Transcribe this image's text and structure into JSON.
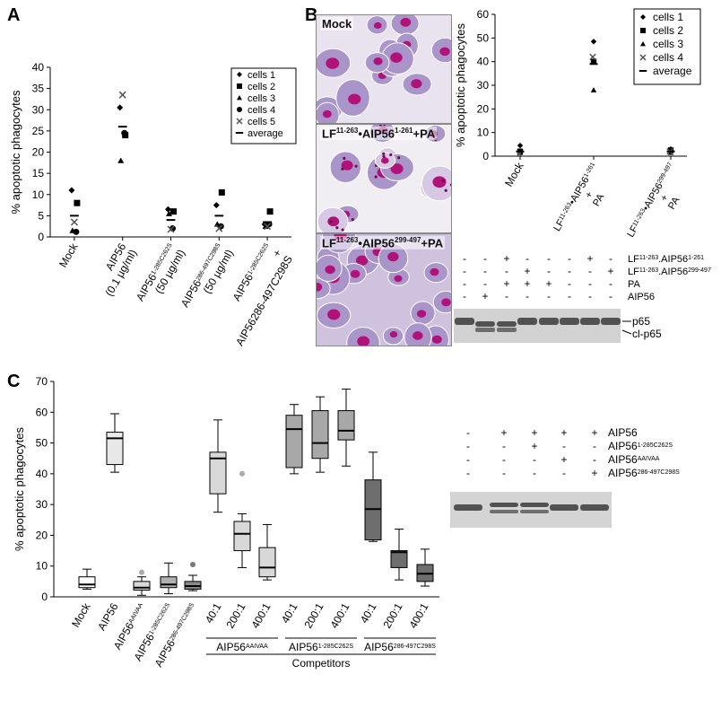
{
  "panels": {
    "a": "A",
    "b": "B",
    "c": "C"
  },
  "chart_data": [
    {
      "type": "scatter",
      "panel": "A",
      "ylabel": "% apoptotic phagocytes",
      "ylim": [
        0,
        40
      ],
      "yticks": [
        0,
        5,
        10,
        15,
        20,
        25,
        30,
        35,
        40
      ],
      "categories": [
        "Mock",
        "AIP56 (0.1 µg/ml)",
        "AIP56 1-285C262S (50 µg/ml)",
        "AIP56 286-497C298S (50 µg/ml)",
        "AIP56 1-285C262S + AIP56 286-497C298S"
      ],
      "category_labels": [
        {
          "lines": [
            "Mock"
          ]
        },
        {
          "lines": [
            "AIP56",
            "(0.1 µg/ml)"
          ]
        },
        {
          "base": "AIP56",
          "sup": "1-285C262S",
          "lines": [
            "(50 µg/ml)"
          ]
        },
        {
          "base": "AIP56",
          "sup": "286-497C298S",
          "lines": [
            "(50 µg/ml)"
          ]
        },
        {
          "base": "AIP56",
          "sup": "1-285C262S",
          "lines": [
            "+",
            "AIP56286-497C298S"
          ]
        }
      ],
      "series": [
        {
          "name": "cells 1",
          "marker": "diamond",
          "values": [
            11,
            30.5,
            6.5,
            7.5,
            3
          ]
        },
        {
          "name": "cells 2",
          "marker": "square",
          "values": [
            8,
            24,
            6,
            10.5,
            6
          ]
        },
        {
          "name": "cells 3",
          "marker": "triangle",
          "values": [
            1.5,
            18,
            5.5,
            3,
            2.5
          ]
        },
        {
          "name": "cells 4",
          "marker": "circle",
          "values": [
            1.2,
            24.5,
            2,
            2.5,
            3
          ]
        },
        {
          "name": "cells 5",
          "marker": "x",
          "values": [
            3.5,
            33.5,
            1.8,
            2,
            2.5
          ]
        },
        {
          "name": "average",
          "marker": "dash",
          "values": [
            5,
            26,
            4,
            5,
            3.5
          ]
        }
      ]
    },
    {
      "type": "scatter",
      "panel": "B",
      "ylabel": "% apoptotic phagocytes",
      "ylim": [
        0,
        60
      ],
      "yticks": [
        0,
        10,
        20,
        30,
        40,
        50,
        60
      ],
      "categories": [
        "Mock",
        "LF11-263•AIP561-261 + PA",
        "LF11-263•AIP56299-497 + PA"
      ],
      "series": [
        {
          "name": "cells 1",
          "marker": "diamond",
          "values": [
            4.5,
            48.5,
            3
          ]
        },
        {
          "name": "cells 2",
          "marker": "square",
          "values": [
            2,
            40,
            2.5
          ]
        },
        {
          "name": "cells 3",
          "marker": "triangle",
          "values": [
            1.5,
            28,
            1.5
          ]
        },
        {
          "name": "cells 4",
          "marker": "x",
          "values": [
            1,
            42,
            2
          ]
        },
        {
          "name": "average",
          "marker": "dash",
          "values": [
            2,
            39,
            2
          ]
        }
      ]
    },
    {
      "type": "box",
      "panel": "C",
      "ylabel": "% apoptotic phagocytes",
      "ylim": [
        0,
        70
      ],
      "yticks": [
        0,
        10,
        20,
        30,
        40,
        50,
        60,
        70
      ],
      "xlabel": "Competitors",
      "boxes": [
        {
          "label": "Mock",
          "min": 2.5,
          "q1": 3,
          "median": 4,
          "q3": 6.5,
          "max": 9,
          "fill": "#ffffff"
        },
        {
          "label": "AIP56",
          "min": 40.5,
          "q1": 43,
          "median": 51.5,
          "q3": 53.5,
          "max": 59.5,
          "fill": "#e8e8e8"
        },
        {
          "label": "AIP56AAIVAA",
          "min": 0.5,
          "q1": 2.2,
          "median": 3,
          "q3": 5,
          "max": 6.5,
          "fill": "#d8d8d8",
          "outliers": [
            8
          ]
        },
        {
          "label": "AIP56 1-285C262S",
          "min": 1,
          "q1": 3,
          "median": 4,
          "q3": 6.5,
          "max": 11,
          "fill": "#b0b0b0"
        },
        {
          "label": "AIP56 286-497C298S",
          "min": 2,
          "q1": 2.5,
          "median": 3.5,
          "q3": 5,
          "max": 7,
          "fill": "#8a8a8a",
          "outliers": [
            10.5
          ]
        },
        {
          "label": "40:1",
          "min": 27.5,
          "q1": 33.5,
          "median": 45,
          "q3": 47,
          "max": 57.5,
          "fill": "#d8d8d8"
        },
        {
          "label": "200:1",
          "min": 9.5,
          "q1": 15,
          "median": 20.5,
          "q3": 24.5,
          "max": 27,
          "fill": "#d8d8d8",
          "outliers": [
            40
          ]
        },
        {
          "label": "400:1",
          "min": 5.5,
          "q1": 6.5,
          "median": 9.5,
          "q3": 16,
          "max": 23.5,
          "fill": "#d8d8d8"
        },
        {
          "label": "40:1",
          "min": 40,
          "q1": 42,
          "median": 54.5,
          "q3": 59,
          "max": 62.5,
          "fill": "#a8a8a8"
        },
        {
          "label": "200:1",
          "min": 40.5,
          "q1": 45,
          "median": 50,
          "q3": 60.5,
          "max": 65,
          "fill": "#a8a8a8"
        },
        {
          "label": "400:1",
          "min": 42.5,
          "q1": 51,
          "median": 54,
          "q3": 60.5,
          "max": 67.5,
          "fill": "#a8a8a8"
        },
        {
          "label": "40:1",
          "min": 18,
          "q1": 18.5,
          "median": 28.5,
          "q3": 38,
          "max": 47,
          "fill": "#6e6e6e"
        },
        {
          "label": "200:1",
          "min": 5.5,
          "q1": 9.5,
          "median": 14.5,
          "q3": 15,
          "max": 22,
          "fill": "#6e6e6e"
        },
        {
          "label": "400:1",
          "min": 3.5,
          "q1": 5,
          "median": 7.5,
          "q3": 10.5,
          "max": 15.5,
          "fill": "#6e6e6e"
        }
      ],
      "single_labels": [
        {
          "base": "Mock",
          "sup": ""
        },
        {
          "base": "AIP56",
          "sup": ""
        },
        {
          "base": "AIP56",
          "sup": "AAIVAA"
        },
        {
          "base": "AIP56",
          "sup": "1-285C262S"
        },
        {
          "base": "AIP56",
          "sup": "286-497C298S"
        }
      ],
      "groups": [
        {
          "base": "AIP56",
          "sup": "AAIVAA"
        },
        {
          "base": "AIP56",
          "sup": "1-285C262S"
        },
        {
          "base": "AIP56",
          "sup": "286-497C298S"
        }
      ]
    }
  ],
  "micrographs": [
    {
      "label": "Mock"
    },
    {
      "label": "LF",
      "sup1": "11-263",
      "mid": "•AIP56",
      "sup2": "1-261",
      "end": "+PA"
    },
    {
      "label": "LF",
      "sup1": "11-263",
      "mid": "•AIP56",
      "sup2": "299-497",
      "end": "+PA"
    }
  ],
  "blot_b": {
    "rows": [
      {
        "signs": [
          "-",
          "-",
          "+",
          "-",
          "-",
          "-",
          "+",
          "-"
        ],
        "label": "LF11-263.AIP561-261",
        "base": "LF",
        "sup1": "11-263",
        "mid": ".AIP56",
        "sup2": "1-261"
      },
      {
        "signs": [
          "-",
          "-",
          "-",
          "+",
          "-",
          "-",
          "-",
          "+"
        ],
        "label": "LF11-263.AIP56299-497",
        "base": "LF",
        "sup1": "11-263",
        "mid": ".AIP56",
        "sup2": "299-497"
      },
      {
        "signs": [
          "-",
          "-",
          "+",
          "+",
          "+",
          "-",
          "-",
          "-"
        ],
        "label": "PA"
      },
      {
        "signs": [
          "-",
          "+",
          "-",
          "-",
          "-",
          "-",
          "-",
          "-"
        ],
        "label": "AIP56"
      }
    ],
    "bands": [
      "p65",
      "cl-p65"
    ]
  },
  "blot_c": {
    "rows": [
      {
        "signs": [
          "-",
          "+",
          "+",
          "+",
          "+"
        ],
        "base": "AIP56",
        "sup": ""
      },
      {
        "signs": [
          "-",
          "-",
          "+",
          "-",
          "-"
        ],
        "base": "AIP56",
        "sup": "1-285C262S"
      },
      {
        "signs": [
          "-",
          "-",
          "-",
          "+",
          "-"
        ],
        "base": "AIP56",
        "sup": "AAIVAA"
      },
      {
        "signs": [
          "-",
          "-",
          "-",
          "-",
          "+"
        ],
        "base": "AIP56",
        "sup": "286-497C298S"
      }
    ]
  }
}
